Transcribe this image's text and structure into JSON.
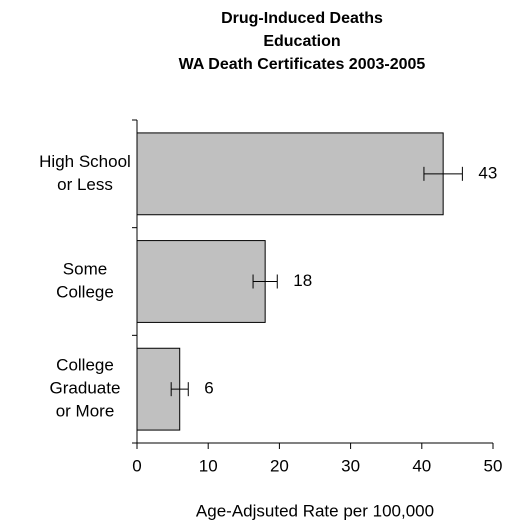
{
  "chart_data": {
    "type": "bar",
    "orientation": "horizontal",
    "title": [
      "Drug-Induced Deaths",
      "Education",
      "WA Death Certificates 2003-2005"
    ],
    "categories": [
      [
        "High School",
        "or Less"
      ],
      [
        "Some",
        "College"
      ],
      [
        "College",
        "Graduate",
        "or More"
      ]
    ],
    "values": [
      43,
      18,
      6
    ],
    "errors": [
      2.7,
      1.7,
      1.2
    ],
    "color": "#c0c0c0",
    "xlim": [
      0,
      50
    ],
    "xticks": [
      0,
      10,
      20,
      30,
      40,
      50
    ],
    "xlabel": "Age-Adjsuted Rate per 100,000",
    "grid": false
  }
}
